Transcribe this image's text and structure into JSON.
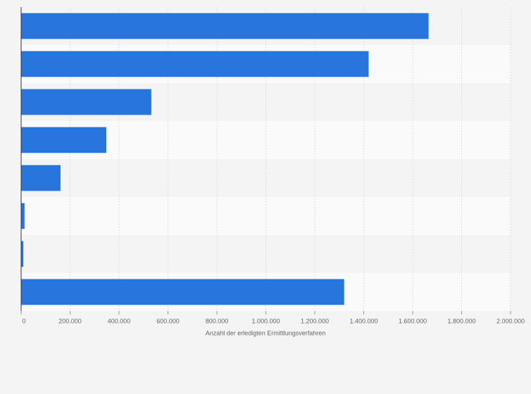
{
  "chart_data": {
    "type": "barh",
    "x_label": "Anzahl der erledigten Ermittlungsverfahren",
    "categories": [
      null,
      null,
      null,
      null,
      null,
      null,
      null,
      null
    ],
    "values": [
      1665000,
      1420000,
      532000,
      348000,
      161000,
      14000,
      9000,
      1320000
    ],
    "color": "#2876dd",
    "xlim": [
      0,
      2000000
    ],
    "xticks": [
      0,
      {
        "value": 200000,
        "label": "200.000"
      },
      {
        "value": 400000,
        "label": "400.000"
      },
      {
        "value": 600000,
        "label": "600.000"
      },
      {
        "value": 800000,
        "label": "800.000"
      },
      {
        "value": 1000000,
        "label": "1.000.000"
      },
      {
        "value": 1200000,
        "label": "1.200.000"
      },
      {
        "value": 1400000,
        "label": "1.400.000"
      },
      {
        "value": 1600000,
        "label": "1.600.000"
      },
      {
        "value": 1800000,
        "label": "1.800.000"
      },
      {
        "value": 2000000,
        "label": "2.000.000"
      }
    ],
    "grid": true
  }
}
